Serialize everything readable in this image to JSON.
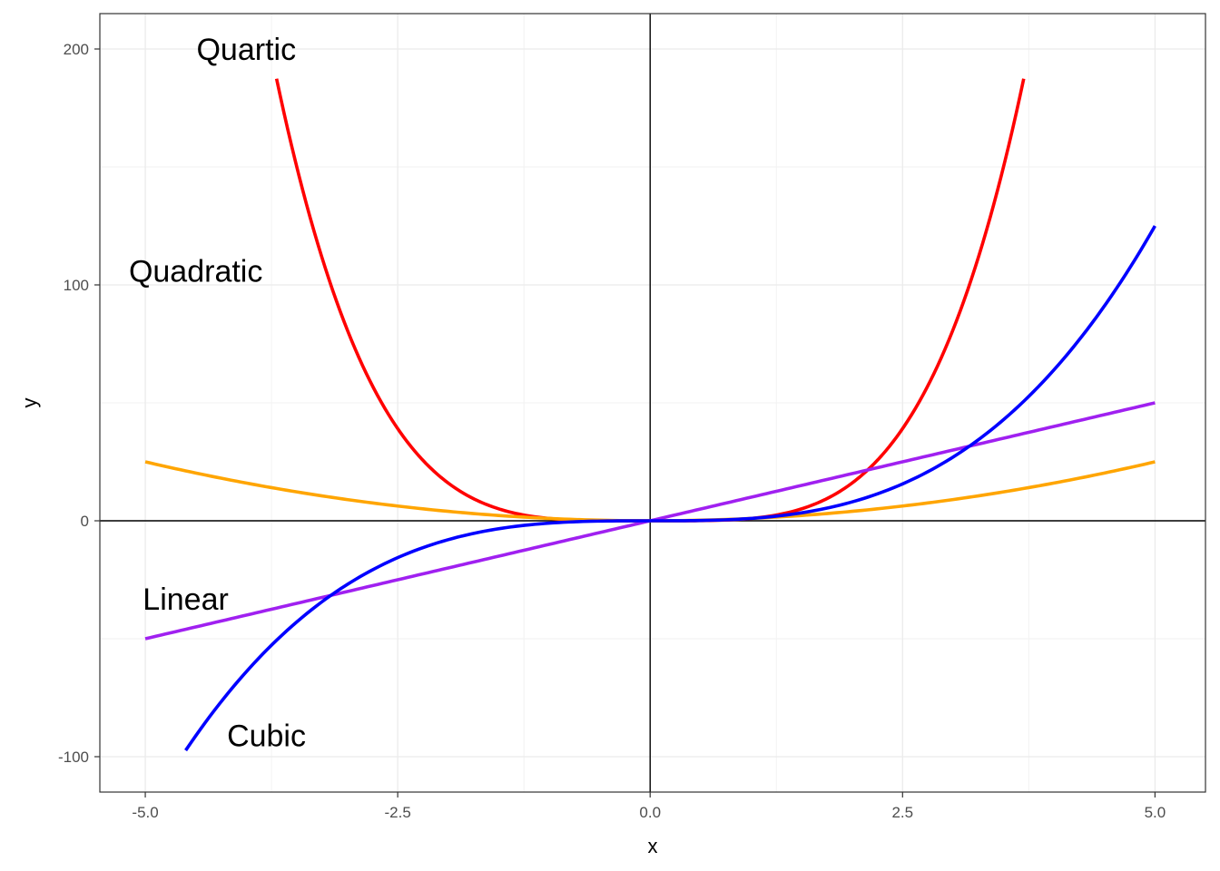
{
  "chart_data": {
    "type": "line",
    "xlabel": "x",
    "ylabel": "y",
    "xlim": [
      -5.45,
      5.5
    ],
    "ylim": [
      -115,
      215
    ],
    "x_ticks": [
      -5.0,
      -2.5,
      0.0,
      2.5,
      5.0
    ],
    "x_tick_labels": [
      "-5.0",
      "-2.5",
      "0.0",
      "2.5",
      "5.0"
    ],
    "y_ticks": [
      -100,
      0,
      100,
      200
    ],
    "y_tick_labels": [
      "-100",
      "0",
      "100",
      "200"
    ],
    "grid": true,
    "reference_lines": {
      "x": 0,
      "y": 0
    },
    "legend": "none",
    "series": [
      {
        "name": "Quartic",
        "function": "x^4",
        "x_range": [
          -3.7,
          3.7
        ],
        "color": "#ff0000",
        "label_x": -4.0,
        "label_y": 200
      },
      {
        "name": "Quadratic",
        "function": "x^2",
        "x_range": [
          -5,
          5
        ],
        "color": "#ffa500",
        "label_x": -4.5,
        "label_y": 106
      },
      {
        "name": "Linear",
        "function": "10x",
        "x_range": [
          -5,
          5
        ],
        "color": "#a020f0",
        "label_x": -4.6,
        "label_y": -33
      },
      {
        "name": "Cubic",
        "function": "x^3",
        "x_range": [
          -4.6,
          5
        ],
        "color": "#0000ff",
        "label_x": -3.8,
        "label_y": -91
      }
    ]
  }
}
